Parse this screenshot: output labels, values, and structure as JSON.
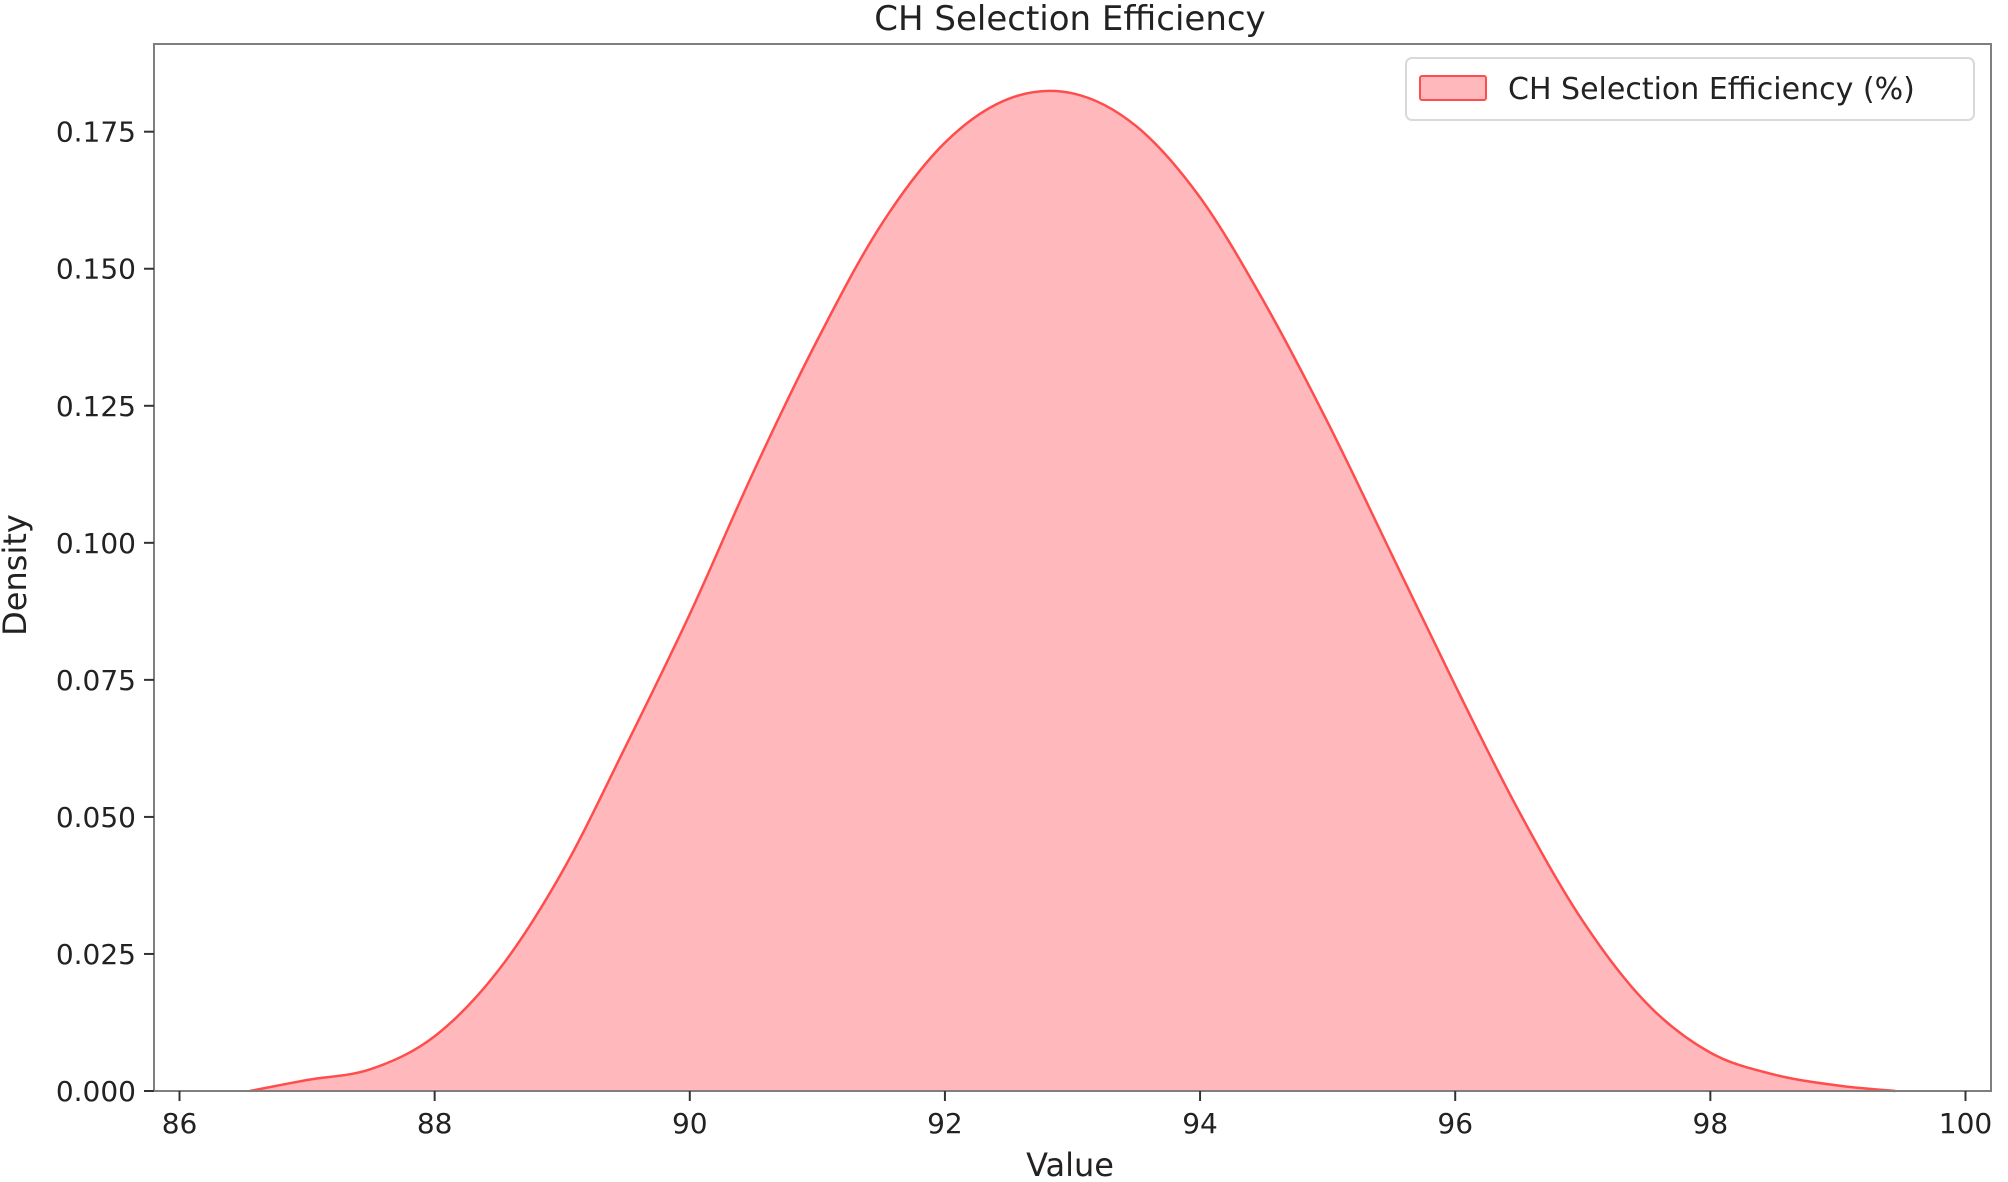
{
  "chart_data": {
    "type": "area",
    "title": "CH Selection Efficiency",
    "xlabel": "Value",
    "ylabel": "Density",
    "xlim": [
      85.8,
      100.2
    ],
    "ylim": [
      0,
      0.191
    ],
    "x_ticks": [
      86,
      88,
      90,
      92,
      94,
      96,
      98,
      100
    ],
    "y_ticks": [
      0.0,
      0.025,
      0.05,
      0.075,
      0.1,
      0.125,
      0.15,
      0.175
    ],
    "y_tick_labels": [
      "0.000",
      "0.025",
      "0.050",
      "0.075",
      "0.100",
      "0.125",
      "0.150",
      "0.175"
    ],
    "grid": false,
    "legend_position": "upper right",
    "series": [
      {
        "name": "CH Selection Efficiency (%)",
        "color": "#ff4d4d",
        "fill_color": "#ffb9bc",
        "x": [
          86.55,
          87.0,
          87.5,
          88.0,
          88.5,
          89.0,
          89.5,
          90.0,
          90.5,
          91.0,
          91.5,
          92.0,
          92.5,
          93.0,
          93.5,
          94.0,
          94.5,
          95.0,
          95.5,
          96.0,
          96.5,
          97.0,
          97.5,
          98.0,
          98.5,
          99.0,
          99.45
        ],
        "y": [
          0.0,
          0.002,
          0.004,
          0.01,
          0.022,
          0.04,
          0.063,
          0.087,
          0.113,
          0.137,
          0.158,
          0.173,
          0.181,
          0.182,
          0.176,
          0.163,
          0.144,
          0.122,
          0.098,
          0.074,
          0.051,
          0.031,
          0.016,
          0.007,
          0.003,
          0.001,
          0.0
        ]
      }
    ]
  }
}
